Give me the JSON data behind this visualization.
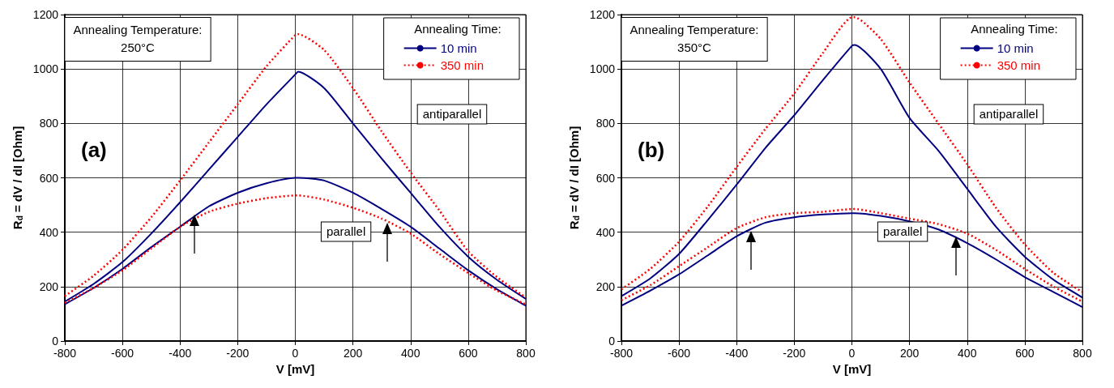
{
  "chart_data": [
    {
      "type": "line",
      "xlabel": "V [mV]",
      "ylabel": "R$_{d}$ = dV / dI [Ohm]",
      "legend_title": "Annealing Time:",
      "legend": "top right",
      "grid": true,
      "marker": "none",
      "xlim": [
        -800,
        800
      ],
      "xticks": [
        -800,
        -600,
        -400,
        -200,
        0,
        200,
        400,
        600,
        800
      ],
      "ylim": [
        0,
        1200
      ],
      "yticks": [
        0,
        200,
        400,
        600,
        800,
        1000,
        1200
      ],
      "x": [
        -800,
        -700,
        -600,
        -500,
        -400,
        -300,
        -200,
        -100,
        0,
        10,
        100,
        200,
        300,
        400,
        500,
        600,
        700,
        800
      ],
      "series": [
        {
          "name": "10 min",
          "color": "#000080",
          "line_style": "solid",
          "values": [
            145,
            210,
            290,
            395,
            510,
            630,
            750,
            870,
            980,
            990,
            930,
            800,
            670,
            545,
            420,
            310,
            225,
            155
          ]
        },
        {
          "color": "#000080",
          "line_style": "solid",
          "values": [
            135,
            195,
            265,
            345,
            420,
            495,
            545,
            580,
            600,
            600,
            590,
            545,
            485,
            420,
            340,
            260,
            190,
            130
          ]
        },
        {
          "name": "350 min",
          "color": "#ff0000",
          "line_style": "dotted",
          "values": [
            165,
            240,
            335,
            455,
            590,
            730,
            870,
            1010,
            1125,
            1128,
            1070,
            930,
            770,
            620,
            480,
            330,
            235,
            160
          ]
        },
        {
          "color": "#ff0000",
          "line_style": "dotted",
          "values": [
            140,
            195,
            260,
            340,
            420,
            475,
            505,
            525,
            535,
            535,
            520,
            490,
            450,
            395,
            320,
            250,
            185,
            135
          ]
        }
      ],
      "annotations": [
        "Annealing Temperature:\n250°C",
        "(a)",
        "antiparallel",
        "parallel"
      ]
    },
    {
      "type": "line",
      "xlabel": "V [mV]",
      "ylabel": "R$_{d}$ = dV / dI [Ohm]",
      "legend_title": "Annealing Time:",
      "legend": "top right",
      "grid": true,
      "marker": "none",
      "xlim": [
        -800,
        800
      ],
      "xticks": [
        -800,
        -600,
        -400,
        -200,
        0,
        200,
        400,
        600,
        800
      ],
      "ylim": [
        0,
        1200
      ],
      "yticks": [
        0,
        200,
        400,
        600,
        800,
        1000,
        1200
      ],
      "x": [
        -800,
        -700,
        -600,
        -500,
        -400,
        -300,
        -200,
        -100,
        0,
        10,
        100,
        200,
        300,
        400,
        500,
        600,
        700,
        800
      ],
      "series": [
        {
          "name": "10 min",
          "color": "#000080",
          "line_style": "solid",
          "values": [
            165,
            230,
            320,
            445,
            575,
            710,
            830,
            960,
            1085,
            1088,
            1000,
            820,
            700,
            560,
            420,
            310,
            225,
            160
          ]
        },
        {
          "color": "#000080",
          "line_style": "solid",
          "values": [
            130,
            185,
            245,
            315,
            385,
            435,
            455,
            465,
            470,
            470,
            460,
            440,
            410,
            360,
            300,
            235,
            180,
            125
          ]
        },
        {
          "name": "350 min",
          "color": "#ff0000",
          "line_style": "dotted",
          "values": [
            190,
            265,
            365,
            495,
            640,
            780,
            910,
            1060,
            1190,
            1190,
            1110,
            950,
            800,
            650,
            490,
            355,
            250,
            180
          ]
        },
        {
          "color": "#ff0000",
          "line_style": "dotted",
          "values": [
            150,
            205,
            275,
            345,
            415,
            455,
            470,
            475,
            485,
            485,
            470,
            450,
            430,
            395,
            335,
            265,
            200,
            145
          ]
        }
      ],
      "annotations": [
        "Annealing Temperature:\n350°C",
        "(b)",
        "antiparallel",
        "parallel"
      ]
    }
  ]
}
